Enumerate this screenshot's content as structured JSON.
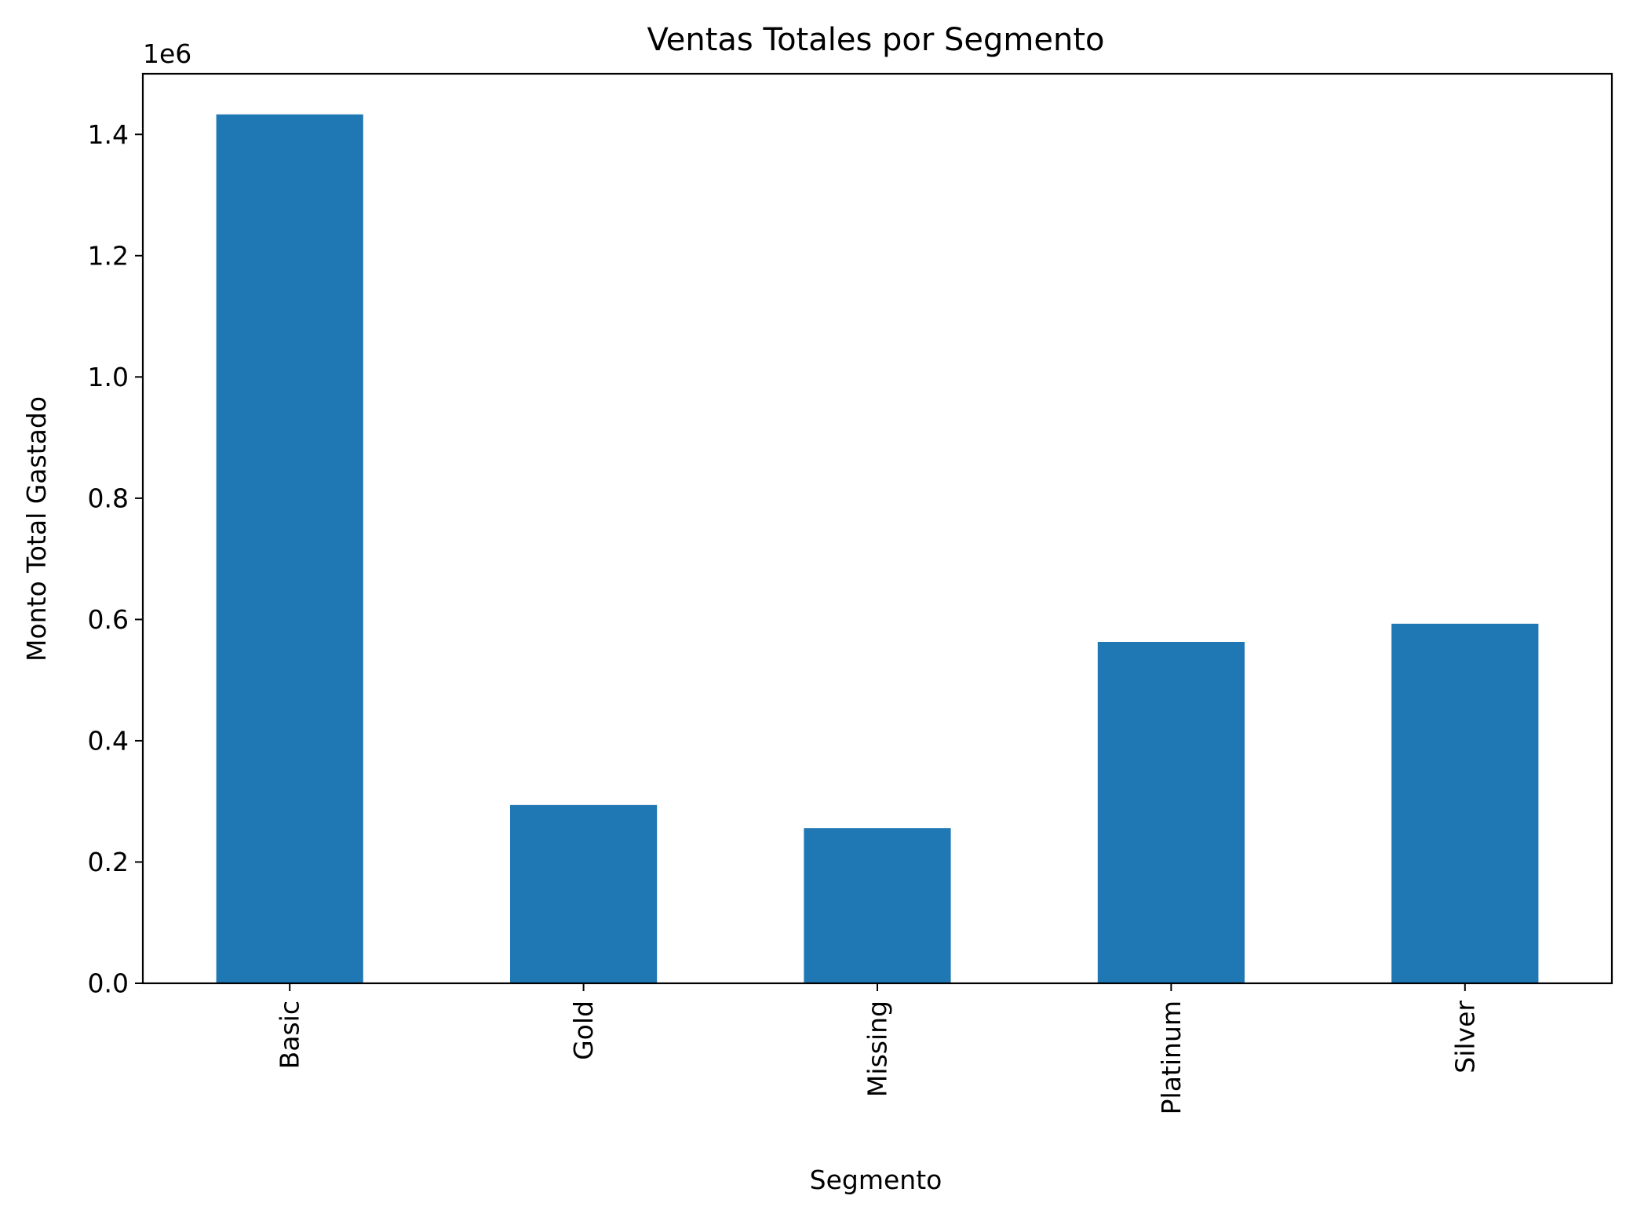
{
  "chart_data": {
    "type": "bar",
    "title": "Ventas Totales por Segmento",
    "xlabel": "Segmento",
    "ylabel": "Monto Total Gastado",
    "y_offset_label": "1e6",
    "categories": [
      "Basic",
      "Gold",
      "Missing",
      "Platinum",
      "Silver"
    ],
    "values": [
      1433000,
      294000,
      256000,
      563000,
      593000
    ],
    "ylim": [
      0,
      1.5
    ],
    "yticks": [
      0.0,
      0.2,
      0.4,
      0.6,
      0.8,
      1.0,
      1.2,
      1.4
    ],
    "ytick_labels": [
      "0.0",
      "0.2",
      "0.4",
      "0.6",
      "0.8",
      "1.0",
      "1.2",
      "1.4"
    ],
    "y_scale": 1000000,
    "bar_color": "#1f77b4",
    "grid": false,
    "legend": "none"
  }
}
